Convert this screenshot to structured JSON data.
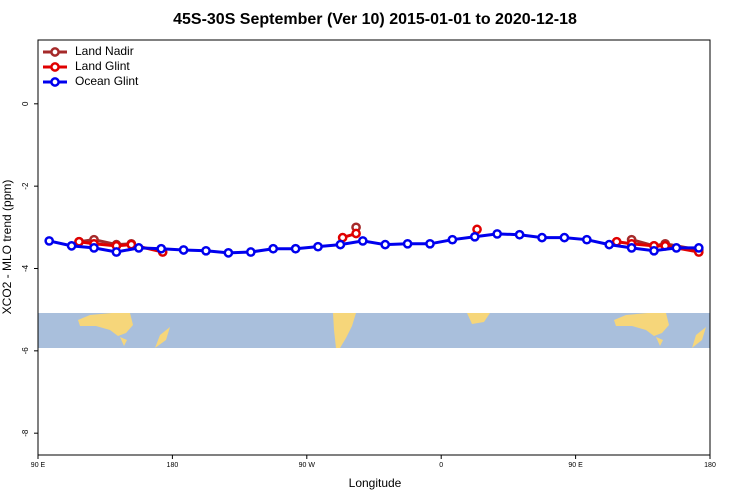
{
  "chart_data": {
    "type": "line",
    "title": "45S-30S September (Ver 10)   2015-01-01 to 2020-12-18",
    "x_label": "Longitude",
    "y_label": "XCO2 - MLO trend (ppm)",
    "xlim": [
      90,
      540
    ],
    "ylim": [
      -8.53,
      1.55
    ],
    "xticks": [
      {
        "value": 90,
        "label": "90 E"
      },
      {
        "value": 180,
        "label": "180"
      },
      {
        "value": 270,
        "label": "90 W"
      },
      {
        "value": 360,
        "label": "0"
      },
      {
        "value": 450,
        "label": "90 E"
      },
      {
        "value": 540,
        "label": "180"
      }
    ],
    "yticks": [
      0,
      -2,
      -4,
      -6,
      -8
    ],
    "legend": "top-left",
    "series": [
      {
        "name": "Land Nadir",
        "color": "#a52a2a",
        "x": [
          117.5,
          127.5,
          142.5,
          152.5,
          null,
          303,
          null,
          487.5,
          502.5,
          510,
          532.5
        ],
        "values": [
          -3.35,
          -3.3,
          -3.42,
          -3.4,
          null,
          -3.0,
          null,
          -3.3,
          -3.45,
          -3.4,
          -3.55
        ]
      },
      {
        "name": "Land Glint",
        "color": "#e00000",
        "x": [
          117.5,
          127.5,
          142.5,
          152.5,
          173.5,
          null,
          294,
          303,
          null,
          384,
          null,
          477.5,
          487.5,
          502.5,
          510,
          532.5
        ],
        "values": [
          -3.35,
          -3.4,
          -3.45,
          -3.42,
          -3.6,
          null,
          -3.25,
          -3.15,
          null,
          -3.05,
          null,
          -3.35,
          -3.4,
          -3.45,
          -3.45,
          -3.6
        ]
      },
      {
        "name": "Ocean Glint",
        "color": "#0000ee",
        "x": [
          97.5,
          112.5,
          127.5,
          142.5,
          157.5,
          172.5,
          187.5,
          202.5,
          217.5,
          232.5,
          247.5,
          262.5,
          277.5,
          292.5,
          307.5,
          322.5,
          337.5,
          352.5,
          367.5,
          382.5,
          397.5,
          412.5,
          427.5,
          442.5,
          457.5,
          472.5,
          487.5,
          502.5,
          517.5,
          532.5
        ],
        "values": [
          -3.33,
          -3.45,
          -3.5,
          -3.6,
          -3.5,
          -3.52,
          -3.55,
          -3.57,
          -3.62,
          -3.6,
          -3.52,
          -3.52,
          -3.47,
          -3.42,
          -3.33,
          -3.42,
          -3.4,
          -3.4,
          -3.3,
          -3.23,
          -3.16,
          -3.18,
          -3.25,
          -3.25,
          -3.3,
          -3.42,
          -3.5,
          -3.57,
          -3.5,
          -3.5
        ]
      }
    ]
  }
}
